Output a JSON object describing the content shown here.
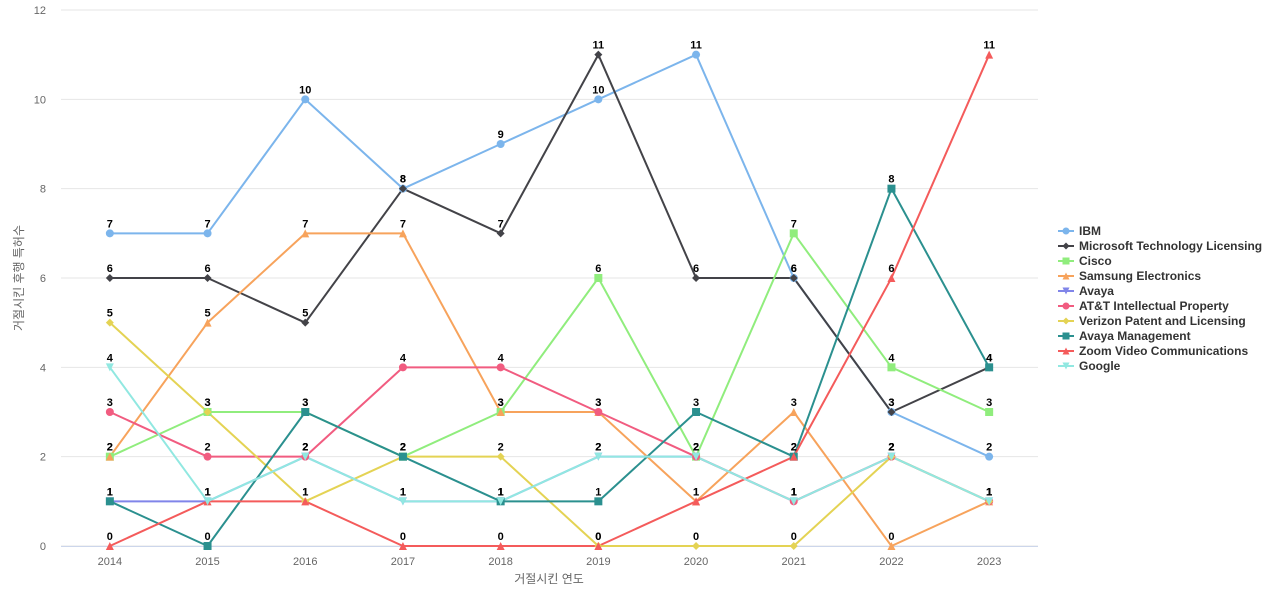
{
  "chart_data": {
    "type": "line",
    "xlabel": "거절시킨 연도",
    "ylabel": "거절시킨 후행 특허수",
    "ylim": [
      0,
      12
    ],
    "yticks": [
      0,
      2,
      4,
      6,
      8,
      10,
      12
    ],
    "grid": "horizontal",
    "legend_position": "right",
    "data_labels": true,
    "categories": [
      "2014",
      "2015",
      "2016",
      "2017",
      "2018",
      "2019",
      "2020",
      "2021",
      "2022",
      "2023"
    ],
    "series": [
      {
        "name": "IBM",
        "color": "#7cb5ec",
        "marker": "circle",
        "values": [
          7,
          7,
          10,
          8,
          9,
          10,
          11,
          6,
          3,
          2
        ]
      },
      {
        "name": "Microsoft Technology Licensing",
        "color": "#434348",
        "marker": "diamond",
        "values": [
          6,
          6,
          5,
          8,
          7,
          11,
          6,
          6,
          3,
          4
        ]
      },
      {
        "name": "Cisco",
        "color": "#90ed7d",
        "marker": "square",
        "values": [
          2,
          3,
          3,
          2,
          3,
          6,
          2,
          7,
          4,
          3
        ]
      },
      {
        "name": "Samsung Electronics",
        "color": "#f7a35c",
        "marker": "triangle",
        "values": [
          2,
          5,
          7,
          7,
          3,
          3,
          1,
          3,
          0,
          1
        ]
      },
      {
        "name": "Avaya",
        "color": "#8085e9",
        "marker": "triangle-down",
        "values": [
          1,
          1,
          2,
          1,
          1,
          2,
          2,
          1,
          2,
          1
        ]
      },
      {
        "name": "AT&T Intellectual Property",
        "color": "#f15c80",
        "marker": "circle",
        "values": [
          3,
          2,
          2,
          4,
          4,
          3,
          2,
          1,
          2,
          1
        ]
      },
      {
        "name": "Verizon Patent and Licensing",
        "color": "#e4d354",
        "marker": "diamond",
        "values": [
          5,
          3,
          1,
          2,
          2,
          0,
          0,
          0,
          2,
          1
        ]
      },
      {
        "name": "Avaya Management",
        "color": "#2b908f",
        "marker": "square",
        "values": [
          1,
          0,
          3,
          2,
          1,
          1,
          3,
          2,
          8,
          4
        ]
      },
      {
        "name": "Zoom Video Communications",
        "color": "#f45b5b",
        "marker": "triangle",
        "values": [
          0,
          1,
          1,
          0,
          0,
          0,
          1,
          2,
          6,
          11
        ]
      },
      {
        "name": "Google",
        "color": "#91e8e1",
        "marker": "triangle-down",
        "values": [
          4,
          1,
          2,
          1,
          1,
          2,
          2,
          1,
          2,
          1
        ]
      }
    ]
  }
}
